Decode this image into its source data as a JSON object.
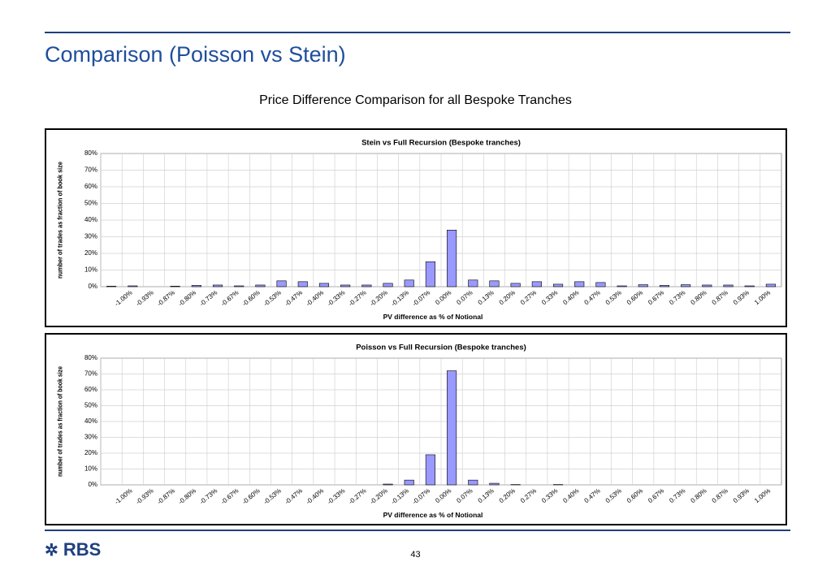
{
  "header": {
    "title": "Comparison (Poisson vs Stein)",
    "subtitle": "Price Difference Comparison for all Bespoke Tranches"
  },
  "chart_data": [
    {
      "type": "bar",
      "title": "Stein vs Full Recursion (Bespoke tranches)",
      "x_label": "PV difference as % of Notional",
      "y_label": "number of trades as fraction of book size",
      "color": "#9999ff",
      "categories": [
        null,
        "-1.00%",
        "-0.93%",
        "-0.87%",
        "-0.80%",
        "-0.73%",
        "-0.67%",
        "-0.60%",
        "-0.53%",
        "-0.47%",
        "-0.40%",
        "-0.33%",
        "-0.27%",
        "-0.20%",
        "-0.13%",
        "-0.07%",
        "0.00%",
        "0.07%",
        "0.13%",
        "0.20%",
        "0.27%",
        "0.33%",
        "0.40%",
        "0.47%",
        "0.53%",
        "0.60%",
        "0.67%",
        "0.73%",
        "0.80%",
        "0.87%",
        "0.93%",
        "1.00%"
      ],
      "values": [
        0.3,
        0.5,
        0,
        0.3,
        0.8,
        1,
        0.5,
        1,
        3.5,
        3,
        2,
        1,
        1,
        2,
        4,
        15,
        34,
        4,
        3.5,
        2,
        3,
        1.5,
        3,
        2.5,
        0.5,
        1.2,
        0.8,
        1.2,
        1,
        1,
        0.5,
        1.5
      ],
      "ylim": [
        0,
        80
      ],
      "yticks": [
        {
          "value": 0,
          "label": "0%"
        },
        {
          "value": 10,
          "label": "10%"
        },
        {
          "value": 20,
          "label": "20%"
        },
        {
          "value": 30,
          "label": "30%"
        },
        {
          "value": 40,
          "label": "40%"
        },
        {
          "value": 50,
          "label": "50%"
        },
        {
          "value": 60,
          "label": "60%"
        },
        {
          "value": 70,
          "label": "70%"
        },
        {
          "value": 80,
          "label": "80%"
        }
      ],
      "grid": true
    },
    {
      "type": "bar",
      "title": "Poisson vs Full Recursion (Bespoke tranches)",
      "x_label": "PV difference as % of Notional",
      "y_label": "number of trades as fraction of book size",
      "color": "#9999ff",
      "categories": [
        null,
        "-1.00%",
        "-0.93%",
        "-0.87%",
        "-0.80%",
        "-0.73%",
        "-0.67%",
        "-0.60%",
        "-0.53%",
        "-0.47%",
        "-0.40%",
        "-0.33%",
        "-0.27%",
        "-0.20%",
        "-0.13%",
        "-0.07%",
        "0.00%",
        "0.07%",
        "0.13%",
        "0.20%",
        "0.27%",
        "0.33%",
        "0.40%",
        "0.47%",
        "0.53%",
        "0.60%",
        "0.67%",
        "0.73%",
        "0.80%",
        "0.87%",
        "0.93%",
        "1.00%"
      ],
      "values": [
        0,
        0,
        0,
        0,
        0,
        0,
        0,
        0,
        0,
        0,
        0,
        0,
        0,
        0.5,
        3,
        19,
        72,
        3,
        1,
        0.2,
        0,
        0.2,
        0,
        0,
        0,
        0,
        0,
        0,
        0,
        0,
        0,
        0
      ],
      "ylim": [
        0,
        80
      ],
      "yticks": [
        {
          "value": 0,
          "label": "0%"
        },
        {
          "value": 10,
          "label": "10%"
        },
        {
          "value": 20,
          "label": "20%"
        },
        {
          "value": 30,
          "label": "30%"
        },
        {
          "value": 40,
          "label": "40%"
        },
        {
          "value": 50,
          "label": "50%"
        },
        {
          "value": 60,
          "label": "60%"
        },
        {
          "value": 70,
          "label": "70%"
        },
        {
          "value": 80,
          "label": "80%"
        }
      ],
      "grid": true
    }
  ],
  "footer": {
    "logo": "RBS",
    "page": "43"
  }
}
